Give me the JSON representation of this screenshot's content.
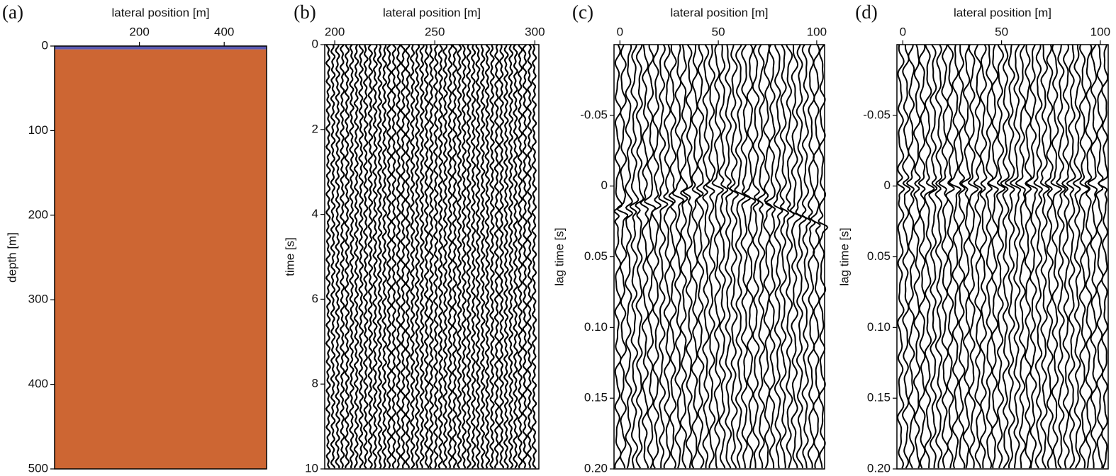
{
  "chart_data": [
    {
      "type": "model",
      "panel_label": "(a)",
      "xlabel": "lateral position [m]",
      "ylabel": "depth [m]",
      "xlim": [
        0,
        500
      ],
      "xticks": [
        200,
        400
      ],
      "ylim": [
        0,
        500
      ],
      "yticks": [
        0,
        100,
        200,
        300,
        400,
        500
      ],
      "layers": [
        {
          "color": "#5a5ab4",
          "top": 0,
          "bottom": 4
        },
        {
          "color": "#cd6633",
          "top": 4,
          "bottom": 500
        }
      ]
    },
    {
      "type": "wiggle",
      "panel_label": "(b)",
      "xlabel": "lateral position [m]",
      "ylabel": "time [s]",
      "xlim": [
        195,
        302
      ],
      "xticks": [
        200,
        250,
        300
      ],
      "ylim": [
        0,
        10
      ],
      "yticks": [
        0,
        2,
        4,
        6,
        8,
        10
      ]
    },
    {
      "type": "wiggle",
      "panel_label": "(c)",
      "xlabel": "lateral position [m]",
      "ylabel": "lag time [s]",
      "xlim": [
        -3,
        104
      ],
      "xticks": [
        0,
        50,
        100
      ],
      "ylim": [
        -0.1,
        0.2
      ],
      "yticks": [
        -0.05,
        0,
        0.05,
        {
          "value": 0.1,
          "label": "0.10"
        },
        0.15,
        {
          "value": 0.2,
          "label": "0.20"
        }
      ]
    },
    {
      "type": "wiggle",
      "panel_label": "(d)",
      "xlabel": "lateral position [m]",
      "ylabel": "lag time [s]",
      "xlim": [
        -3,
        104
      ],
      "xticks": [
        0,
        50,
        100
      ],
      "ylim": [
        -0.1,
        0.2
      ],
      "yticks": [
        -0.05,
        0,
        0.05,
        {
          "value": 0.1,
          "label": "0.10"
        },
        0.15,
        {
          "value": 0.2,
          "label": "0.20"
        }
      ]
    }
  ]
}
